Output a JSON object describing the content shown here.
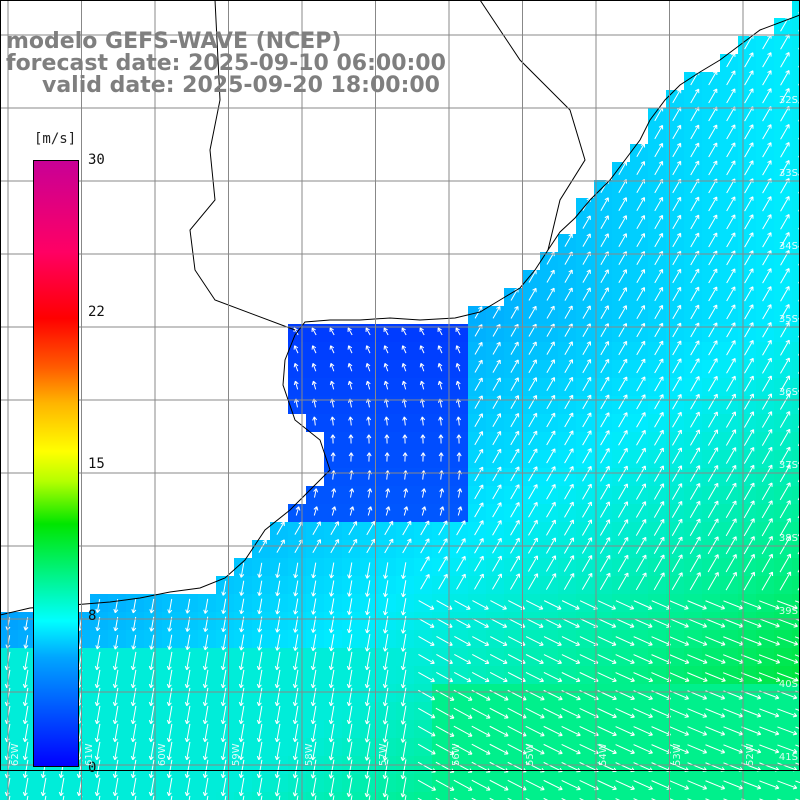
{
  "title": {
    "line1": "modelo GEFS-WAVE (NCEP)",
    "line2": "forecast date: 2025-09-10 06:00:00",
    "line3": "valid date: 2025-09-20 18:00:00"
  },
  "colorbar": {
    "unit": "[m/s]",
    "min": 0,
    "max": 30,
    "ticks": [
      "30",
      "22",
      "15",
      "8",
      "0"
    ],
    "tick_values": [
      30,
      22,
      15,
      8,
      0
    ],
    "colors": [
      "#0000ff",
      "#00a6ff",
      "#00ffff",
      "#00e600",
      "#ffff00",
      "#ff5a00",
      "#ff0000",
      "#c80096"
    ]
  },
  "map": {
    "latitude_labels": [
      "32S",
      "33S",
      "34S",
      "35S",
      "36S",
      "37S",
      "38S",
      "39S",
      "40S",
      "41S"
    ],
    "longitude_labels": [
      "62W",
      "61W",
      "60W",
      "59W",
      "58W",
      "57W",
      "56W",
      "55W",
      "54W",
      "53W",
      "52W"
    ],
    "land_color": "#ffffff",
    "grid_color": "#888888",
    "wind_speed_ms": {
      "weak_estuary": 2,
      "coastal": 4,
      "offshore_south": 10,
      "southeast": 12
    }
  }
}
